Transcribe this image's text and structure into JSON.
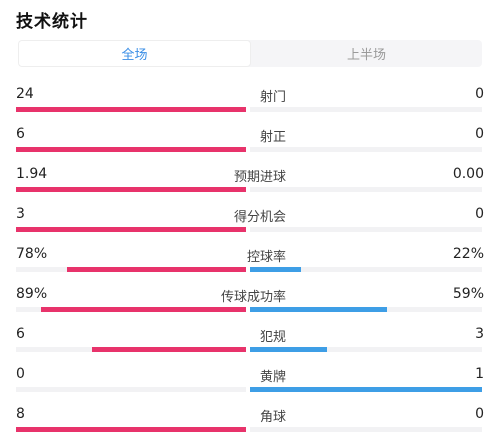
{
  "title": "技术统计",
  "tabs": [
    {
      "label": "全场",
      "active": true
    },
    {
      "label": "上半场",
      "active": false
    }
  ],
  "colors": {
    "home": "#e8336b",
    "away": "#3e9ee6",
    "accent": "#3a8ee6"
  },
  "stats": [
    {
      "label": "射门",
      "left": "24",
      "right": "0",
      "left_share": 1.0,
      "right_share": 0.0
    },
    {
      "label": "射正",
      "left": "6",
      "right": "0",
      "left_share": 1.0,
      "right_share": 0.0
    },
    {
      "label": "预期进球",
      "left": "1.94",
      "right": "0.00",
      "left_share": 1.0,
      "right_share": 0.0
    },
    {
      "label": "得分机会",
      "left": "3",
      "right": "0",
      "left_share": 1.0,
      "right_share": 0.0
    },
    {
      "label": "控球率",
      "left": "78%",
      "right": "22%",
      "left_share": 0.78,
      "right_share": 0.22
    },
    {
      "label": "传球成功率",
      "left": "89%",
      "right": "59%",
      "left_share": 0.89,
      "right_share": 0.59
    },
    {
      "label": "犯规",
      "left": "6",
      "right": "3",
      "left_share": 0.67,
      "right_share": 0.33
    },
    {
      "label": "黄牌",
      "left": "0",
      "right": "1",
      "left_share": 0.0,
      "right_share": 1.0
    },
    {
      "label": "角球",
      "left": "8",
      "right": "0",
      "left_share": 1.0,
      "right_share": 0.0
    }
  ]
}
